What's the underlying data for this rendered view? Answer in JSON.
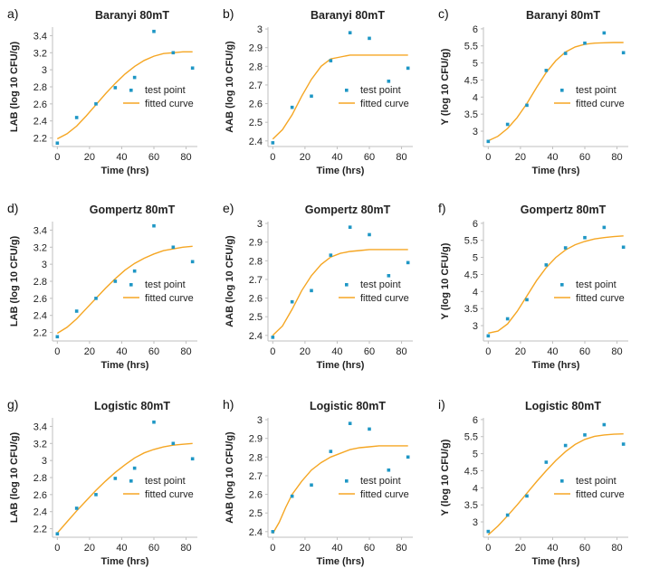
{
  "colors": {
    "point": "#1f97c5",
    "curve": "#f5a623"
  },
  "chart_data": [
    {
      "panel": "a)",
      "type": "scatter",
      "title": "Baranyi 80mT",
      "xlabel": "Time (hrs)",
      "ylabel": "LAB (log 10 CFU/g)",
      "xlim": [
        -3,
        87
      ],
      "ylim": [
        2.1,
        3.5
      ],
      "xticks": [
        0,
        20,
        40,
        60,
        80
      ],
      "yticks": [
        2.2,
        2.4,
        2.6,
        2.8,
        3,
        3.2,
        3.4
      ],
      "ytick_labels": [
        "2.2",
        "2.4",
        "2.6",
        "2.8",
        "3",
        "3.2",
        "3.4"
      ],
      "legend": {
        "points": "test point",
        "curve": "fitted curve",
        "position": "middle-right"
      },
      "series": [
        {
          "name": "test point",
          "type": "scatter",
          "x": [
            0,
            12,
            24,
            36,
            48,
            60,
            72,
            84
          ],
          "y": [
            2.14,
            2.44,
            2.6,
            2.79,
            2.91,
            3.45,
            3.2,
            3.02
          ]
        },
        {
          "name": "fitted curve",
          "type": "line",
          "x": [
            0,
            6,
            12,
            18,
            24,
            30,
            36,
            42,
            48,
            54,
            60,
            66,
            72,
            78,
            84
          ],
          "y": [
            2.19,
            2.25,
            2.34,
            2.46,
            2.59,
            2.72,
            2.84,
            2.95,
            3.04,
            3.11,
            3.16,
            3.19,
            3.2,
            3.21,
            3.21
          ]
        }
      ]
    },
    {
      "panel": "b)",
      "type": "scatter",
      "title": "Baranyi 80mT",
      "xlabel": "Time (hrs)",
      "ylabel": "AAB (log 10 CFU/g)",
      "xlim": [
        -3,
        87
      ],
      "ylim": [
        2.37,
        3.01
      ],
      "xticks": [
        0,
        20,
        40,
        60,
        80
      ],
      "yticks": [
        2.4,
        2.5,
        2.6,
        2.7,
        2.8,
        2.9,
        3
      ],
      "ytick_labels": [
        "2.4",
        "2.5",
        "2.6",
        "2.7",
        "2.8",
        "2.9",
        "3"
      ],
      "legend": {
        "points": "test point",
        "curve": "fitted curve",
        "position": "middle-right"
      },
      "series": [
        {
          "name": "test point",
          "type": "scatter",
          "x": [
            0,
            12,
            24,
            36,
            48,
            60,
            72,
            84
          ],
          "y": [
            2.39,
            2.58,
            2.64,
            2.83,
            2.98,
            2.95,
            2.72,
            2.79
          ]
        },
        {
          "name": "fitted curve",
          "type": "line",
          "x": [
            0,
            6,
            12,
            18,
            24,
            30,
            36,
            42,
            48,
            54,
            60,
            66,
            72,
            78,
            84
          ],
          "y": [
            2.41,
            2.46,
            2.54,
            2.64,
            2.73,
            2.8,
            2.84,
            2.85,
            2.86,
            2.86,
            2.86,
            2.86,
            2.86,
            2.86,
            2.86
          ]
        }
      ]
    },
    {
      "panel": "c)",
      "type": "scatter",
      "title": "Baranyi 80mT",
      "xlabel": "Time (hrs)",
      "ylabel": "Y (log 10 CFU/g)",
      "xlim": [
        -3,
        87
      ],
      "ylim": [
        2.55,
        6.05
      ],
      "xticks": [
        0,
        20,
        40,
        60,
        80
      ],
      "yticks": [
        3,
        3.5,
        4,
        4.5,
        5,
        5.5,
        6
      ],
      "ytick_labels": [
        "3",
        "3.5",
        "4",
        "4.5",
        "5",
        "5.5",
        "6"
      ],
      "legend": {
        "points": "test point",
        "curve": "fitted curve",
        "position": "middle-right"
      },
      "series": [
        {
          "name": "test point",
          "type": "scatter",
          "x": [
            0,
            12,
            24,
            36,
            48,
            60,
            72,
            84
          ],
          "y": [
            2.7,
            3.2,
            3.76,
            4.78,
            5.28,
            5.58,
            5.88,
            5.3
          ]
        },
        {
          "name": "fitted curve",
          "type": "line",
          "x": [
            0,
            6,
            12,
            18,
            24,
            30,
            36,
            42,
            48,
            54,
            60,
            66,
            72,
            78,
            84
          ],
          "y": [
            2.72,
            2.85,
            3.08,
            3.4,
            3.81,
            4.28,
            4.72,
            5.07,
            5.32,
            5.47,
            5.55,
            5.58,
            5.59,
            5.6,
            5.6
          ]
        }
      ]
    },
    {
      "panel": "d)",
      "type": "scatter",
      "title": "Gompertz 80mT",
      "xlabel": "Time (hrs)",
      "ylabel": "LAB (log 10 CFU/g)",
      "xlim": [
        -3,
        87
      ],
      "ylim": [
        2.1,
        3.5
      ],
      "xticks": [
        0,
        20,
        40,
        60,
        80
      ],
      "yticks": [
        2.2,
        2.4,
        2.6,
        2.8,
        3,
        3.2,
        3.4
      ],
      "ytick_labels": [
        "2.2",
        "2.4",
        "2.6",
        "2.8",
        "3",
        "3.2",
        "3.4"
      ],
      "legend": {
        "points": "test point",
        "curve": "fitted curve",
        "position": "middle-right"
      },
      "series": [
        {
          "name": "test point",
          "type": "scatter",
          "x": [
            0,
            12,
            24,
            36,
            48,
            60,
            72,
            84
          ],
          "y": [
            2.15,
            2.45,
            2.6,
            2.8,
            2.92,
            3.45,
            3.2,
            3.03
          ]
        },
        {
          "name": "fitted curve",
          "type": "line",
          "x": [
            0,
            6,
            12,
            18,
            24,
            30,
            36,
            42,
            48,
            54,
            60,
            66,
            72,
            78,
            84
          ],
          "y": [
            2.19,
            2.26,
            2.36,
            2.48,
            2.6,
            2.72,
            2.83,
            2.93,
            3.01,
            3.07,
            3.12,
            3.16,
            3.18,
            3.2,
            3.21
          ]
        }
      ]
    },
    {
      "panel": "e)",
      "type": "scatter",
      "title": "Gompertz 80mT",
      "xlabel": "Time (hrs)",
      "ylabel": "AAB (log 10 CFU/g)",
      "xlim": [
        -3,
        87
      ],
      "ylim": [
        2.37,
        3.01
      ],
      "xticks": [
        0,
        20,
        40,
        60,
        80
      ],
      "yticks": [
        2.4,
        2.5,
        2.6,
        2.7,
        2.8,
        2.9,
        3
      ],
      "ytick_labels": [
        "2.4",
        "2.5",
        "2.6",
        "2.7",
        "2.8",
        "2.9",
        "3"
      ],
      "legend": {
        "points": "test point",
        "curve": "fitted curve",
        "position": "middle-right"
      },
      "series": [
        {
          "name": "test point",
          "type": "scatter",
          "x": [
            0,
            12,
            24,
            36,
            48,
            60,
            72,
            84
          ],
          "y": [
            2.39,
            2.58,
            2.64,
            2.83,
            2.98,
            2.94,
            2.72,
            2.79
          ]
        },
        {
          "name": "fitted curve",
          "type": "line",
          "x": [
            0,
            6,
            12,
            18,
            24,
            30,
            36,
            42,
            48,
            54,
            60,
            66,
            72,
            78,
            84
          ],
          "y": [
            2.4,
            2.45,
            2.54,
            2.64,
            2.72,
            2.78,
            2.82,
            2.84,
            2.85,
            2.855,
            2.86,
            2.86,
            2.86,
            2.86,
            2.86
          ]
        }
      ]
    },
    {
      "panel": "f)",
      "type": "scatter",
      "title": "Gompertz 80mT",
      "xlabel": "Time (hrs)",
      "ylabel": "Y (log 10 CFU/g)",
      "xlim": [
        -3,
        87
      ],
      "ylim": [
        2.55,
        6.05
      ],
      "xticks": [
        0,
        20,
        40,
        60,
        80
      ],
      "yticks": [
        3,
        3.5,
        4,
        4.5,
        5,
        5.5,
        6
      ],
      "ytick_labels": [
        "3",
        "3.5",
        "4",
        "4.5",
        "5",
        "5.5",
        "6"
      ],
      "legend": {
        "points": "test point",
        "curve": "fitted curve",
        "position": "middle-right"
      },
      "series": [
        {
          "name": "test point",
          "type": "scatter",
          "x": [
            0,
            12,
            24,
            36,
            48,
            60,
            72,
            84
          ],
          "y": [
            2.7,
            3.2,
            3.76,
            4.78,
            5.28,
            5.58,
            5.88,
            5.3
          ]
        },
        {
          "name": "fitted curve",
          "type": "line",
          "x": [
            0,
            6,
            12,
            18,
            24,
            30,
            36,
            42,
            48,
            54,
            60,
            66,
            72,
            78,
            84
          ],
          "y": [
            2.78,
            2.84,
            3.05,
            3.42,
            3.87,
            4.32,
            4.7,
            5.0,
            5.22,
            5.37,
            5.47,
            5.54,
            5.58,
            5.61,
            5.63
          ]
        }
      ]
    },
    {
      "panel": "g)",
      "type": "scatter",
      "title": "Logistic 80mT",
      "xlabel": "Time (hrs)",
      "ylabel": "LAB (log 10 CFU/g)",
      "xlim": [
        -3,
        87
      ],
      "ylim": [
        2.1,
        3.5
      ],
      "xticks": [
        0,
        20,
        40,
        60,
        80
      ],
      "yticks": [
        2.2,
        2.4,
        2.6,
        2.8,
        3,
        3.2,
        3.4
      ],
      "ytick_labels": [
        "2.2",
        "2.4",
        "2.6",
        "2.8",
        "3",
        "3.2",
        "3.4"
      ],
      "legend": {
        "points": "test point",
        "curve": "fitted curve",
        "position": "middle-right"
      },
      "series": [
        {
          "name": "test point",
          "type": "scatter",
          "x": [
            0,
            12,
            24,
            36,
            48,
            60,
            72,
            84
          ],
          "y": [
            2.14,
            2.44,
            2.6,
            2.79,
            2.91,
            3.45,
            3.2,
            3.02
          ]
        },
        {
          "name": "fitted curve",
          "type": "line",
          "x": [
            0,
            6,
            12,
            18,
            24,
            30,
            36,
            42,
            48,
            54,
            60,
            66,
            72,
            78,
            84
          ],
          "y": [
            2.15,
            2.28,
            2.41,
            2.53,
            2.65,
            2.76,
            2.86,
            2.95,
            3.03,
            3.09,
            3.13,
            3.16,
            3.18,
            3.19,
            3.2
          ]
        }
      ]
    },
    {
      "panel": "h)",
      "type": "scatter",
      "title": "Logistic 80mT",
      "xlabel": "Time (hrs)",
      "ylabel": "AAB (log 10 CFU/g)",
      "xlim": [
        -3,
        87
      ],
      "ylim": [
        2.37,
        3.01
      ],
      "xticks": [
        0,
        20,
        40,
        60,
        80
      ],
      "yticks": [
        2.4,
        2.5,
        2.6,
        2.7,
        2.8,
        2.9,
        3
      ],
      "ytick_labels": [
        "2.4",
        "2.5",
        "2.6",
        "2.7",
        "2.8",
        "2.9",
        "3"
      ],
      "legend": {
        "points": "test point",
        "curve": "fitted curve",
        "position": "middle-right"
      },
      "series": [
        {
          "name": "test point",
          "type": "scatter",
          "x": [
            0,
            12,
            24,
            36,
            48,
            60,
            72,
            84
          ],
          "y": [
            2.4,
            2.59,
            2.65,
            2.83,
            2.98,
            2.95,
            2.73,
            2.8
          ]
        },
        {
          "name": "fitted curve",
          "type": "line",
          "x": [
            0,
            4,
            8,
            12,
            18,
            24,
            30,
            36,
            42,
            48,
            54,
            60,
            66,
            72,
            78,
            84
          ],
          "y": [
            2.39,
            2.45,
            2.53,
            2.6,
            2.67,
            2.73,
            2.77,
            2.8,
            2.82,
            2.84,
            2.85,
            2.855,
            2.86,
            2.86,
            2.86,
            2.86
          ]
        }
      ]
    },
    {
      "panel": "i)",
      "type": "scatter",
      "title": "Logistic 80mT",
      "xlabel": "Time (hrs)",
      "ylabel": "Y (log 10 CFU/g)",
      "xlim": [
        -3,
        87
      ],
      "ylim": [
        2.55,
        6.05
      ],
      "xticks": [
        0,
        20,
        40,
        60,
        80
      ],
      "yticks": [
        3,
        3.5,
        4,
        4.5,
        5,
        5.5,
        6
      ],
      "ytick_labels": [
        "3",
        "3.5",
        "4",
        "4.5",
        "5",
        "5.5",
        "6"
      ],
      "legend": {
        "points": "test point",
        "curve": "fitted curve",
        "position": "middle-right"
      },
      "series": [
        {
          "name": "test point",
          "type": "scatter",
          "x": [
            0,
            12,
            24,
            36,
            48,
            60,
            72,
            84
          ],
          "y": [
            2.72,
            3.2,
            3.76,
            4.75,
            5.24,
            5.55,
            5.85,
            5.28
          ]
        },
        {
          "name": "fitted curve",
          "type": "line",
          "x": [
            0,
            6,
            12,
            18,
            24,
            30,
            36,
            42,
            48,
            54,
            60,
            66,
            72,
            78,
            84
          ],
          "y": [
            2.62,
            2.88,
            3.18,
            3.5,
            3.84,
            4.18,
            4.5,
            4.8,
            5.06,
            5.27,
            5.42,
            5.51,
            5.55,
            5.57,
            5.58
          ]
        }
      ]
    }
  ]
}
